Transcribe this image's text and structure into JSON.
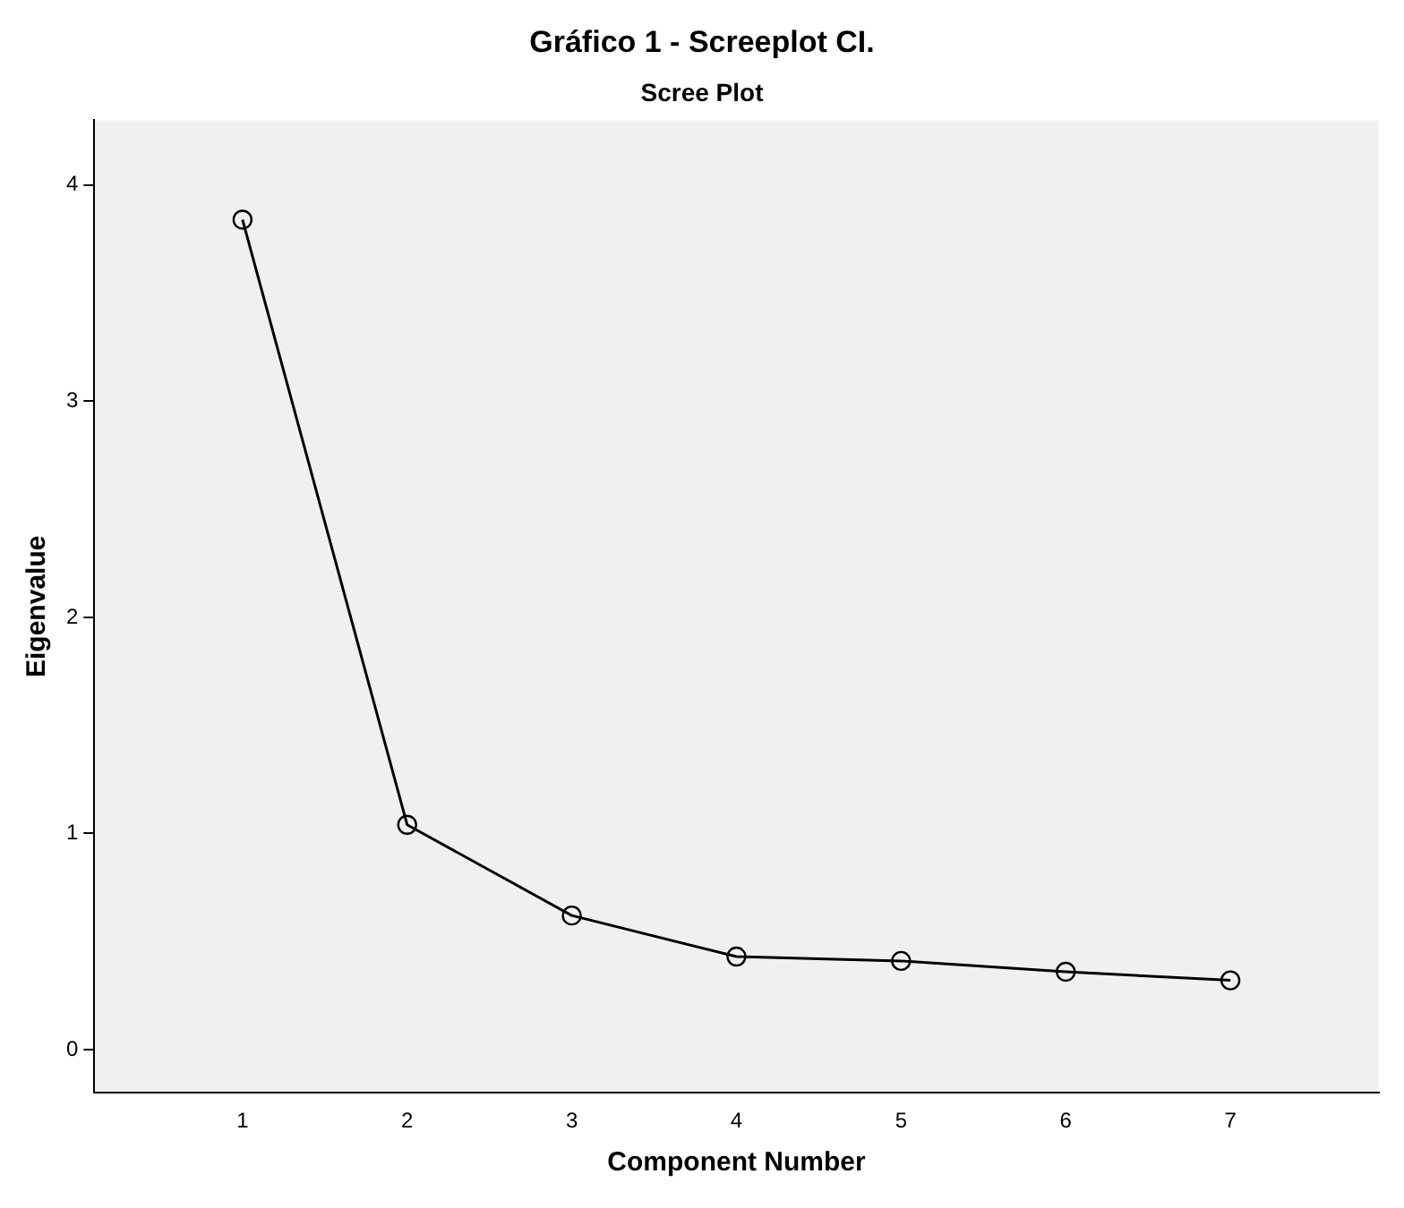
{
  "chart_data": {
    "type": "line",
    "title": "Gráfico 1 - Screeplot CI.",
    "subtitle": "Scree Plot",
    "xlabel": "Component Number",
    "ylabel": "Eigenvalue",
    "x": [
      1,
      2,
      3,
      4,
      5,
      6,
      7
    ],
    "series": [
      {
        "color": "#000000",
        "values": [
          3.84,
          1.04,
          0.62,
          0.43,
          0.41,
          0.36,
          0.32
        ]
      }
    ],
    "xlim": [
      0.1,
      7.9
    ],
    "xticks": [
      1,
      2,
      3,
      4,
      5,
      6,
      7
    ],
    "ylim": [
      -0.2,
      4.3
    ],
    "yticks": [
      0,
      1,
      2,
      3,
      4
    ],
    "grid": false,
    "legend": false,
    "marker": "circle",
    "line_style": "solid"
  }
}
